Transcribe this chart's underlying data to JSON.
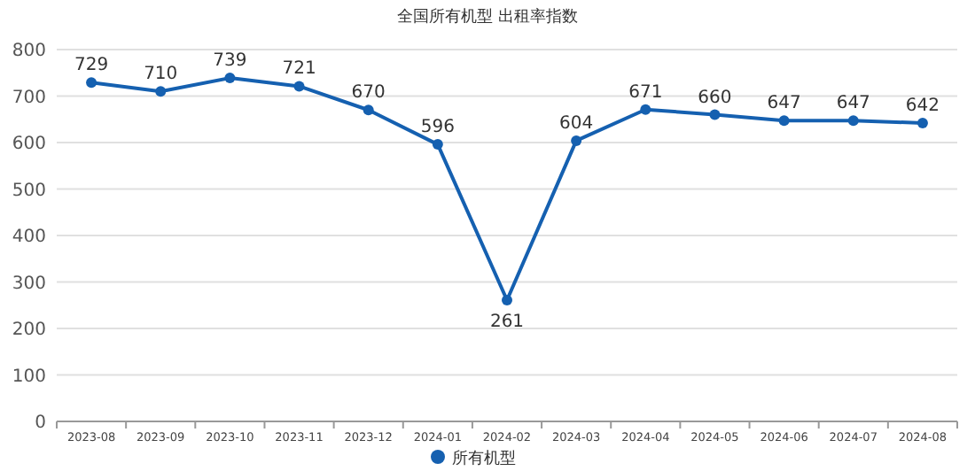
{
  "chart_data": {
    "type": "line",
    "title": "全国所有机型  出租率指数",
    "categories": [
      "2023-08",
      "2023-09",
      "2023-10",
      "2023-11",
      "2023-12",
      "2024-01",
      "2024-02",
      "2024-03",
      "2024-04",
      "2024-05",
      "2024-06",
      "2024-07",
      "2024-08"
    ],
    "series": [
      {
        "name": "所有机型",
        "color": "#1560b0",
        "values": [
          729,
          710,
          739,
          721,
          670,
          596,
          261,
          604,
          671,
          660,
          647,
          647,
          642
        ]
      }
    ],
    "ylim": [
      0,
      800
    ],
    "yticks": [
      0,
      100,
      200,
      300,
      400,
      500,
      600,
      700,
      800
    ],
    "grid": "y",
    "legend": "bottom",
    "marker": "circle",
    "line_style": "solid",
    "data_labels": true
  }
}
